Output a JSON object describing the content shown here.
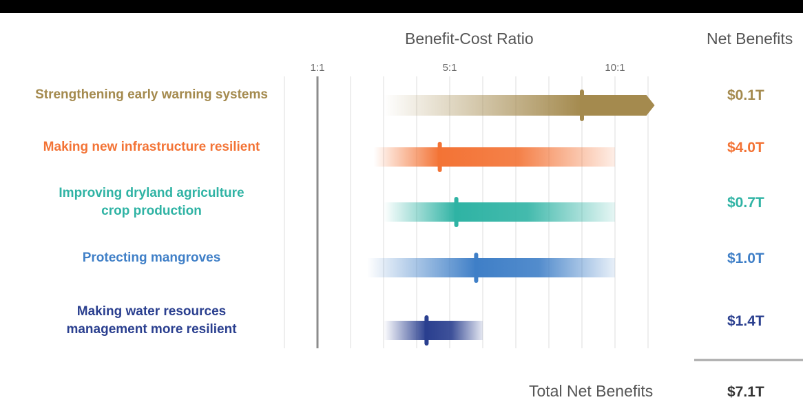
{
  "chart_data": {
    "type": "range-bar",
    "title": "Benefit-Cost Ratio",
    "net_title": "Net Benefits",
    "xlim": [
      0,
      11.5
    ],
    "ticks": [
      {
        "value": 1,
        "label": "1:1"
      },
      {
        "value": 5,
        "label": "5:1"
      },
      {
        "value": 10,
        "label": "10:1"
      }
    ],
    "gridlines": [
      0,
      1,
      2,
      3,
      4,
      5,
      6,
      7,
      8,
      9,
      10,
      11
    ],
    "series": [
      {
        "label": "Strengthening early warning systems",
        "low": 3,
        "high": 11.2,
        "point": 9,
        "color": "#a48a4e",
        "open_ended": true,
        "net_benefit": "$0.1T"
      },
      {
        "label": "Making new infrastructure resilient",
        "low": 2.7,
        "high": 10,
        "point": 4.7,
        "color": "#f37335",
        "open_ended": false,
        "net_benefit": "$4.0T"
      },
      {
        "label": "Improving dryland agriculture\ncrop production",
        "low": 3,
        "high": 10,
        "point": 5.2,
        "color": "#2fb3a4",
        "open_ended": false,
        "net_benefit": "$0.7T"
      },
      {
        "label": "Protecting mangroves",
        "low": 2.5,
        "high": 10,
        "point": 5.8,
        "color": "#3f7fc7",
        "open_ended": false,
        "net_benefit": "$1.0T"
      },
      {
        "label": "Making water resources\nmanagement more resilient",
        "low": 3,
        "high": 6,
        "point": 4.3,
        "color": "#2a3f8f",
        "open_ended": false,
        "net_benefit": "$1.4T"
      }
    ],
    "total_label": "Total Net Benefits",
    "total_value": "$7.1T"
  }
}
